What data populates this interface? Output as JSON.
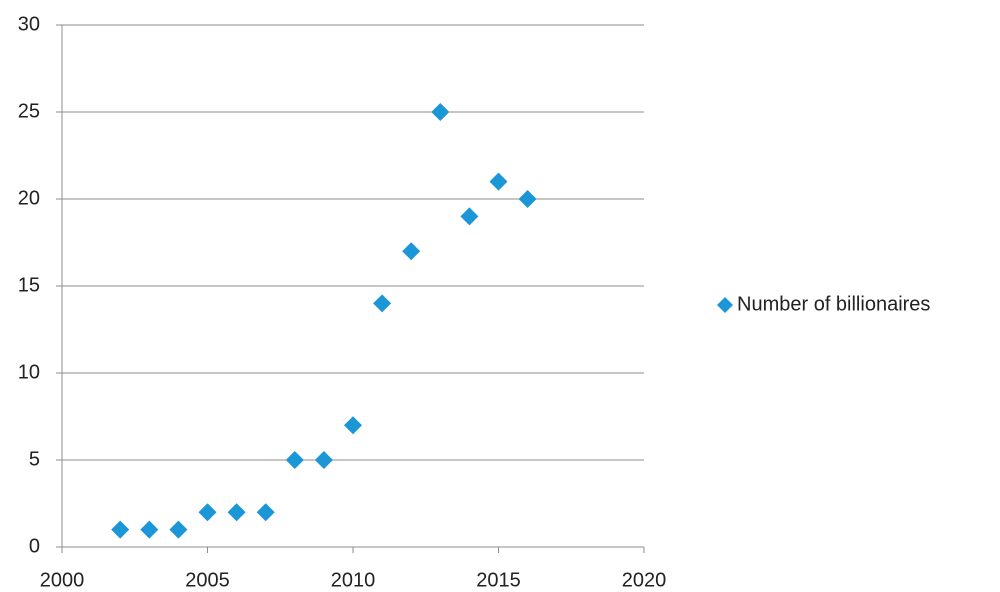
{
  "chart_data": {
    "type": "scatter",
    "series": [
      {
        "name": "Number of billionaires",
        "color": "#1b96d6",
        "x": [
          2002,
          2003,
          2004,
          2005,
          2006,
          2007,
          2008,
          2009,
          2010,
          2011,
          2012,
          2013,
          2014,
          2015,
          2016
        ],
        "values": [
          1,
          1,
          1,
          2,
          2,
          2,
          5,
          5,
          7,
          14,
          17,
          25,
          19,
          21,
          20
        ]
      }
    ],
    "xlim": [
      2000,
      2020
    ],
    "xticks": [
      2000,
      2005,
      2010,
      2015,
      2020
    ],
    "ylim": [
      0,
      30
    ],
    "yticks": [
      0,
      5,
      10,
      15,
      20,
      25,
      30
    ],
    "grid": true,
    "legend": "right"
  }
}
